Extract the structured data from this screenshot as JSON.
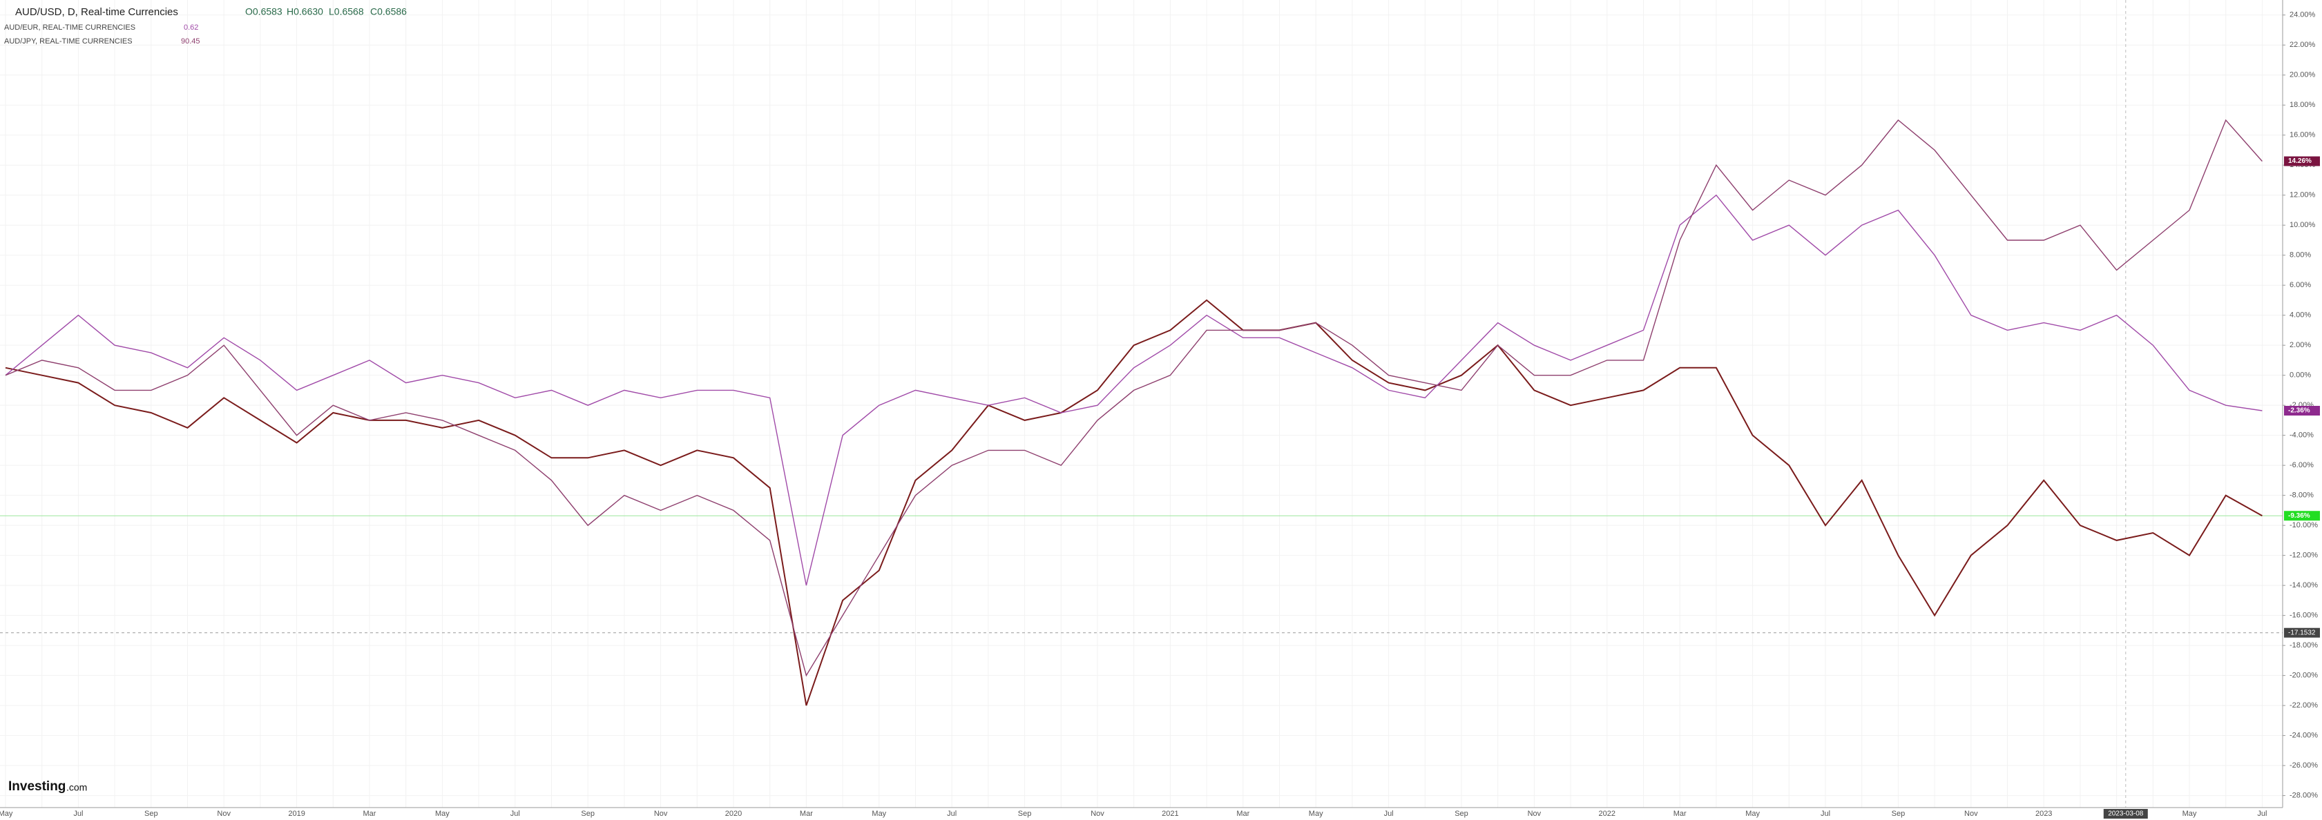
{
  "chart_data": {
    "type": "line",
    "title": "AUD/USD, D, Real-time Currencies",
    "ohlc": [
      "O0.6583",
      "H0.6630",
      "L0.6568",
      "C0.6586"
    ],
    "logo": "Investing",
    "logo_suffix": ".com",
    "categories": [
      "May",
      null,
      "Jul",
      null,
      "Sep",
      null,
      "Nov",
      null,
      "2019",
      null,
      "Mar",
      null,
      "May",
      null,
      "Jul",
      null,
      "Sep",
      null,
      "Nov",
      null,
      "2020",
      null,
      "Mar",
      null,
      "May",
      null,
      "Jul",
      null,
      "Sep",
      null,
      "Nov",
      null,
      "2021",
      null,
      "Mar",
      null,
      "May",
      null,
      "Jul",
      null,
      "Sep",
      null,
      "Nov",
      null,
      "2022",
      null,
      "Mar",
      null,
      "May",
      null,
      "Jul",
      null,
      "Sep",
      null,
      "Nov",
      null,
      "2023",
      null,
      "Mar",
      null,
      "May",
      null,
      "Jul"
    ],
    "series": [
      {
        "name": "AUD/USD",
        "color": "#7a1b1b",
        "label_color": "#22dd22",
        "end_label": "-9.36%",
        "values": [
          0.5,
          0,
          -0.5,
          -2,
          -2.5,
          -3.5,
          -1.5,
          -3,
          -4.5,
          -2.5,
          -3,
          -3,
          -3.5,
          -3,
          -4,
          -5.5,
          -5.5,
          -5,
          -6,
          -5,
          -5.5,
          -7.5,
          -22,
          -15,
          -13,
          -7,
          -5,
          -2,
          -3,
          -2.5,
          -1,
          2,
          3,
          5,
          3,
          3,
          3.5,
          1,
          -0.5,
          -1,
          0,
          2,
          -1,
          -2,
          -1.5,
          -1,
          0.5,
          0.5,
          -4,
          -6,
          -10,
          -7,
          -12,
          -16,
          -12,
          -10,
          -7,
          -10,
          -11,
          -10.5,
          -12,
          -8,
          -9.36
        ]
      },
      {
        "name": "AUD/EUR, REAL-TIME CURRENCIES",
        "legend_value": "0.62",
        "color": "#a04aa8",
        "label_color": "#8e2a8e",
        "end_label": "-2.36%",
        "values": [
          0,
          2,
          4,
          2,
          1.5,
          0.5,
          2.5,
          1,
          -1,
          0,
          1,
          -0.5,
          0,
          -0.5,
          -1.5,
          -1,
          -2,
          -1,
          -1.5,
          -1,
          -1,
          -1.5,
          -14,
          -4,
          -2,
          -1,
          -1.5,
          -2,
          -1.5,
          -2.5,
          -2,
          0.5,
          2,
          4,
          2.5,
          2.5,
          1.5,
          0.5,
          -1,
          -1.5,
          1,
          3.5,
          2,
          1,
          2,
          3,
          10,
          12,
          9,
          10,
          8,
          10,
          11,
          8,
          4,
          3,
          3.5,
          3,
          4,
          2,
          -1,
          -2,
          -2.36
        ]
      },
      {
        "name": "AUD/JPY, REAL-TIME CURRENCIES",
        "legend_value": "90.45",
        "color": "#8e3f6e",
        "label_color": "#7a1440",
        "end_label": "14.26%",
        "values": [
          0,
          1,
          0.5,
          -1,
          -1,
          0,
          2,
          -1,
          -4,
          -2,
          -3,
          -2.5,
          -3,
          -4,
          -5,
          -7,
          -10,
          -8,
          -9,
          -8,
          -9,
          -11,
          -20,
          -16,
          -12,
          -8,
          -6,
          -5,
          -5,
          -6,
          -3,
          -1,
          0,
          3,
          3,
          3,
          3.5,
          2,
          0,
          -0.5,
          -1,
          2,
          0,
          0,
          1,
          1,
          9,
          14,
          11,
          13,
          12,
          14,
          17,
          15,
          12,
          9,
          9,
          10,
          7,
          9,
          11,
          17,
          14.26
        ]
      }
    ],
    "ylim": [
      -28.8,
      25
    ],
    "yticks": [
      {
        "value": 24,
        "label": "24.00%"
      },
      {
        "value": 22,
        "label": "22.00%"
      },
      {
        "value": 20,
        "label": "20.00%"
      },
      {
        "value": 18,
        "label": "18.00%"
      },
      {
        "value": 16,
        "label": "16.00%"
      },
      {
        "value": 14,
        "label": "14.00%"
      },
      {
        "value": 12,
        "label": "12.00%"
      },
      {
        "value": 10,
        "label": "10.00%"
      },
      {
        "value": 8,
        "label": "8.00%"
      },
      {
        "value": 6,
        "label": "6.00%"
      },
      {
        "value": 4,
        "label": "4.00%"
      },
      {
        "value": 2,
        "label": "2.00%"
      },
      {
        "value": 0,
        "label": "0.00%"
      },
      {
        "value": -2,
        "label": "-2.00%"
      },
      {
        "value": -4,
        "label": "-4.00%"
      },
      {
        "value": -6,
        "label": "-6.00%"
      },
      {
        "value": -8,
        "label": "-8.00%"
      },
      {
        "value": -10,
        "label": "-10.00%"
      },
      {
        "value": -12,
        "label": "-12.00%"
      },
      {
        "value": -14,
        "label": "-14.00%"
      },
      {
        "value": -16,
        "label": "-16.00%"
      },
      {
        "value": -18,
        "label": "-18.00%"
      },
      {
        "value": -20,
        "label": "-20.00%"
      },
      {
        "value": -22,
        "label": "-22.00%"
      },
      {
        "value": -24,
        "label": "-24.00%"
      },
      {
        "value": -26,
        "label": "-26.00%"
      },
      {
        "value": -28,
        "label": "-28.00%"
      }
    ],
    "grid": true,
    "crosshair": {
      "x_label": "2023-03-08",
      "y": -17.1532,
      "y_label": "-17.1532"
    }
  }
}
